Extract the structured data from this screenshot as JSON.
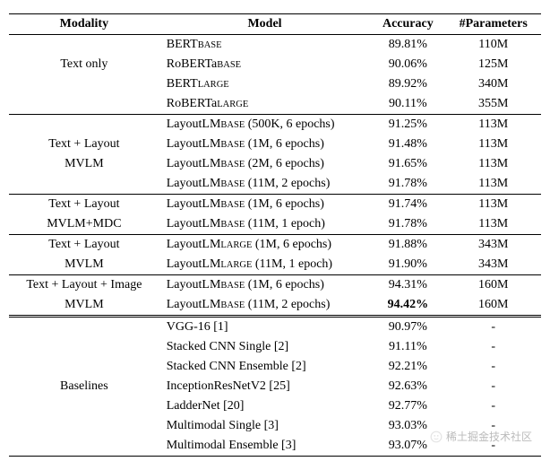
{
  "headers": [
    "Modality",
    "Model",
    "Accuracy",
    "#Parameters"
  ],
  "groups": [
    {
      "modality_lines": [
        "Text only"
      ],
      "rows": [
        {
          "m": "BERT",
          "sub": "BASE",
          "note": "",
          "acc": "89.81%",
          "par": "110M"
        },
        {
          "m": "RoBERTa",
          "sub": "BASE",
          "note": "",
          "acc": "90.06%",
          "par": "125M"
        },
        {
          "m": "BERT",
          "sub": "LARGE",
          "note": "",
          "acc": "89.92%",
          "par": "340M"
        },
        {
          "m": "RoBERTa",
          "sub": "LARGE",
          "note": "",
          "acc": "90.11%",
          "par": "355M"
        }
      ],
      "sep": "line"
    },
    {
      "modality_lines": [
        "Text + Layout",
        "MVLM"
      ],
      "rows": [
        {
          "m": "LayoutLM",
          "sub": "BASE",
          "note": " (500K, 6 epochs)",
          "acc": "91.25%",
          "par": "113M"
        },
        {
          "m": "LayoutLM",
          "sub": "BASE",
          "note": " (1M, 6 epochs)",
          "acc": "91.48%",
          "par": "113M"
        },
        {
          "m": "LayoutLM",
          "sub": "BASE",
          "note": " (2M, 6 epochs)",
          "acc": "91.65%",
          "par": "113M"
        },
        {
          "m": "LayoutLM",
          "sub": "BASE",
          "note": " (11M, 2 epochs)",
          "acc": "91.78%",
          "par": "113M"
        }
      ],
      "sep": "line"
    },
    {
      "modality_lines": [
        "Text + Layout",
        "MVLM+MDC"
      ],
      "rows": [
        {
          "m": "LayoutLM",
          "sub": "BASE",
          "note": " (1M, 6 epochs)",
          "acc": "91.74%",
          "par": "113M"
        },
        {
          "m": "LayoutLM",
          "sub": "BASE",
          "note": " (11M, 1 epoch)",
          "acc": "91.78%",
          "par": "113M"
        }
      ],
      "sep": "line"
    },
    {
      "modality_lines": [
        "Text + Layout",
        "MVLM"
      ],
      "rows": [
        {
          "m": "LayoutLM",
          "sub": "LARGE",
          "note": " (1M, 6 epochs)",
          "acc": "91.88%",
          "par": "343M"
        },
        {
          "m": "LayoutLM",
          "sub": "LARGE",
          "note": " (11M, 1 epoch)",
          "acc": "91.90%",
          "par": "343M"
        }
      ],
      "sep": "line"
    },
    {
      "modality_lines": [
        "Text + Layout + Image",
        "MVLM"
      ],
      "rows": [
        {
          "m": "LayoutLM",
          "sub": "BASE",
          "note": " (1M, 6 epochs)",
          "acc": "94.31%",
          "par": "160M"
        },
        {
          "m": "LayoutLM",
          "sub": "BASE",
          "note": " (11M, 2 epochs)",
          "acc": "94.42%",
          "par": "160M",
          "bold_acc": true
        }
      ],
      "sep": "line"
    },
    {
      "modality_lines": [
        "Baselines"
      ],
      "rows": [
        {
          "m": "VGG-16 [1]",
          "sub": "",
          "note": "",
          "acc": "90.97%",
          "par": "-"
        },
        {
          "m": "Stacked CNN Single [2]",
          "sub": "",
          "note": "",
          "acc": "91.11%",
          "par": "-"
        },
        {
          "m": "Stacked CNN Ensemble [2]",
          "sub": "",
          "note": "",
          "acc": "92.21%",
          "par": "-"
        },
        {
          "m": "InceptionResNetV2 [25]",
          "sub": "",
          "note": "",
          "acc": "92.63%",
          "par": "-"
        },
        {
          "m": "LadderNet [20]",
          "sub": "",
          "note": "",
          "acc": "92.77%",
          "par": "-"
        },
        {
          "m": "Multimodal Single [3]",
          "sub": "",
          "note": "",
          "acc": "93.03%",
          "par": "-"
        },
        {
          "m": "Multimodal Ensemble [3]",
          "sub": "",
          "note": "",
          "acc": "93.07%",
          "par": "-"
        }
      ],
      "sep": "double"
    }
  ],
  "watermark": "稀土掘金技术社区"
}
